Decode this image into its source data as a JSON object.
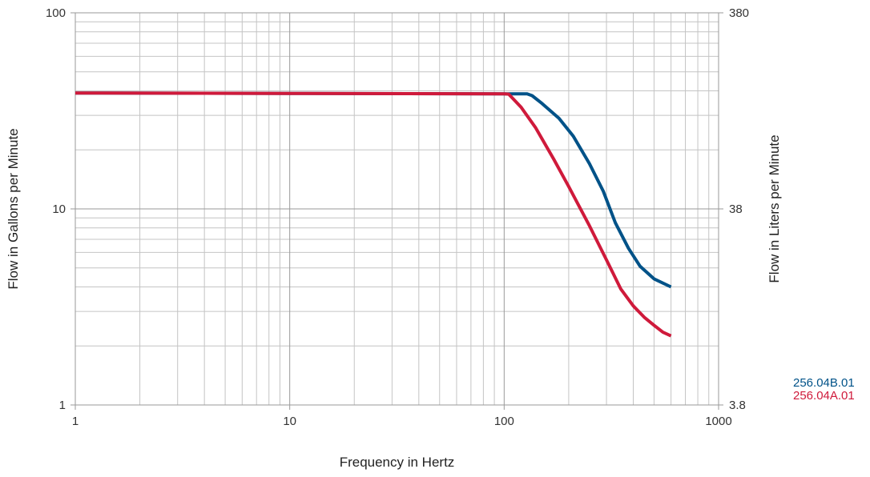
{
  "chart_data": {
    "type": "line",
    "xlabel": "Frequency in Hertz",
    "ylabel": "Flow in Gallons per Minute",
    "ylabel_right": "Flow in Liters per Minute",
    "x_scale": "log",
    "y_scale": "log",
    "xlim": [
      1,
      1000
    ],
    "ylim": [
      1,
      100
    ],
    "ylim_right": [
      3.8,
      380
    ],
    "x_ticks": [
      "1",
      "10",
      "100",
      "1000"
    ],
    "y_ticks": [
      "1",
      "10",
      "100"
    ],
    "y_ticks_right": [
      "3.8",
      "38",
      "380"
    ],
    "grid": true,
    "legend_position": "bottom-right",
    "series": [
      {
        "name": "256.04B.01",
        "color": "#005288",
        "x": [
          1,
          10,
          100,
          118,
          128,
          135,
          150,
          180,
          210,
          250,
          290,
          330,
          380,
          430,
          500,
          600
        ],
        "y": [
          39,
          38.8,
          38.6,
          38.6,
          38.6,
          37.8,
          34.5,
          29,
          23.5,
          17,
          12.3,
          8.5,
          6.3,
          5.1,
          4.4,
          4.0
        ]
      },
      {
        "name": "256.04A.01",
        "color": "#cf1a3b",
        "x": [
          1,
          10,
          100,
          105,
          120,
          140,
          170,
          200,
          250,
          300,
          350,
          400,
          450,
          500,
          550,
          600
        ],
        "y": [
          39,
          38.8,
          38.6,
          38.5,
          33,
          26,
          18,
          13,
          8.2,
          5.5,
          3.9,
          3.2,
          2.8,
          2.55,
          2.35,
          2.25
        ]
      }
    ]
  }
}
